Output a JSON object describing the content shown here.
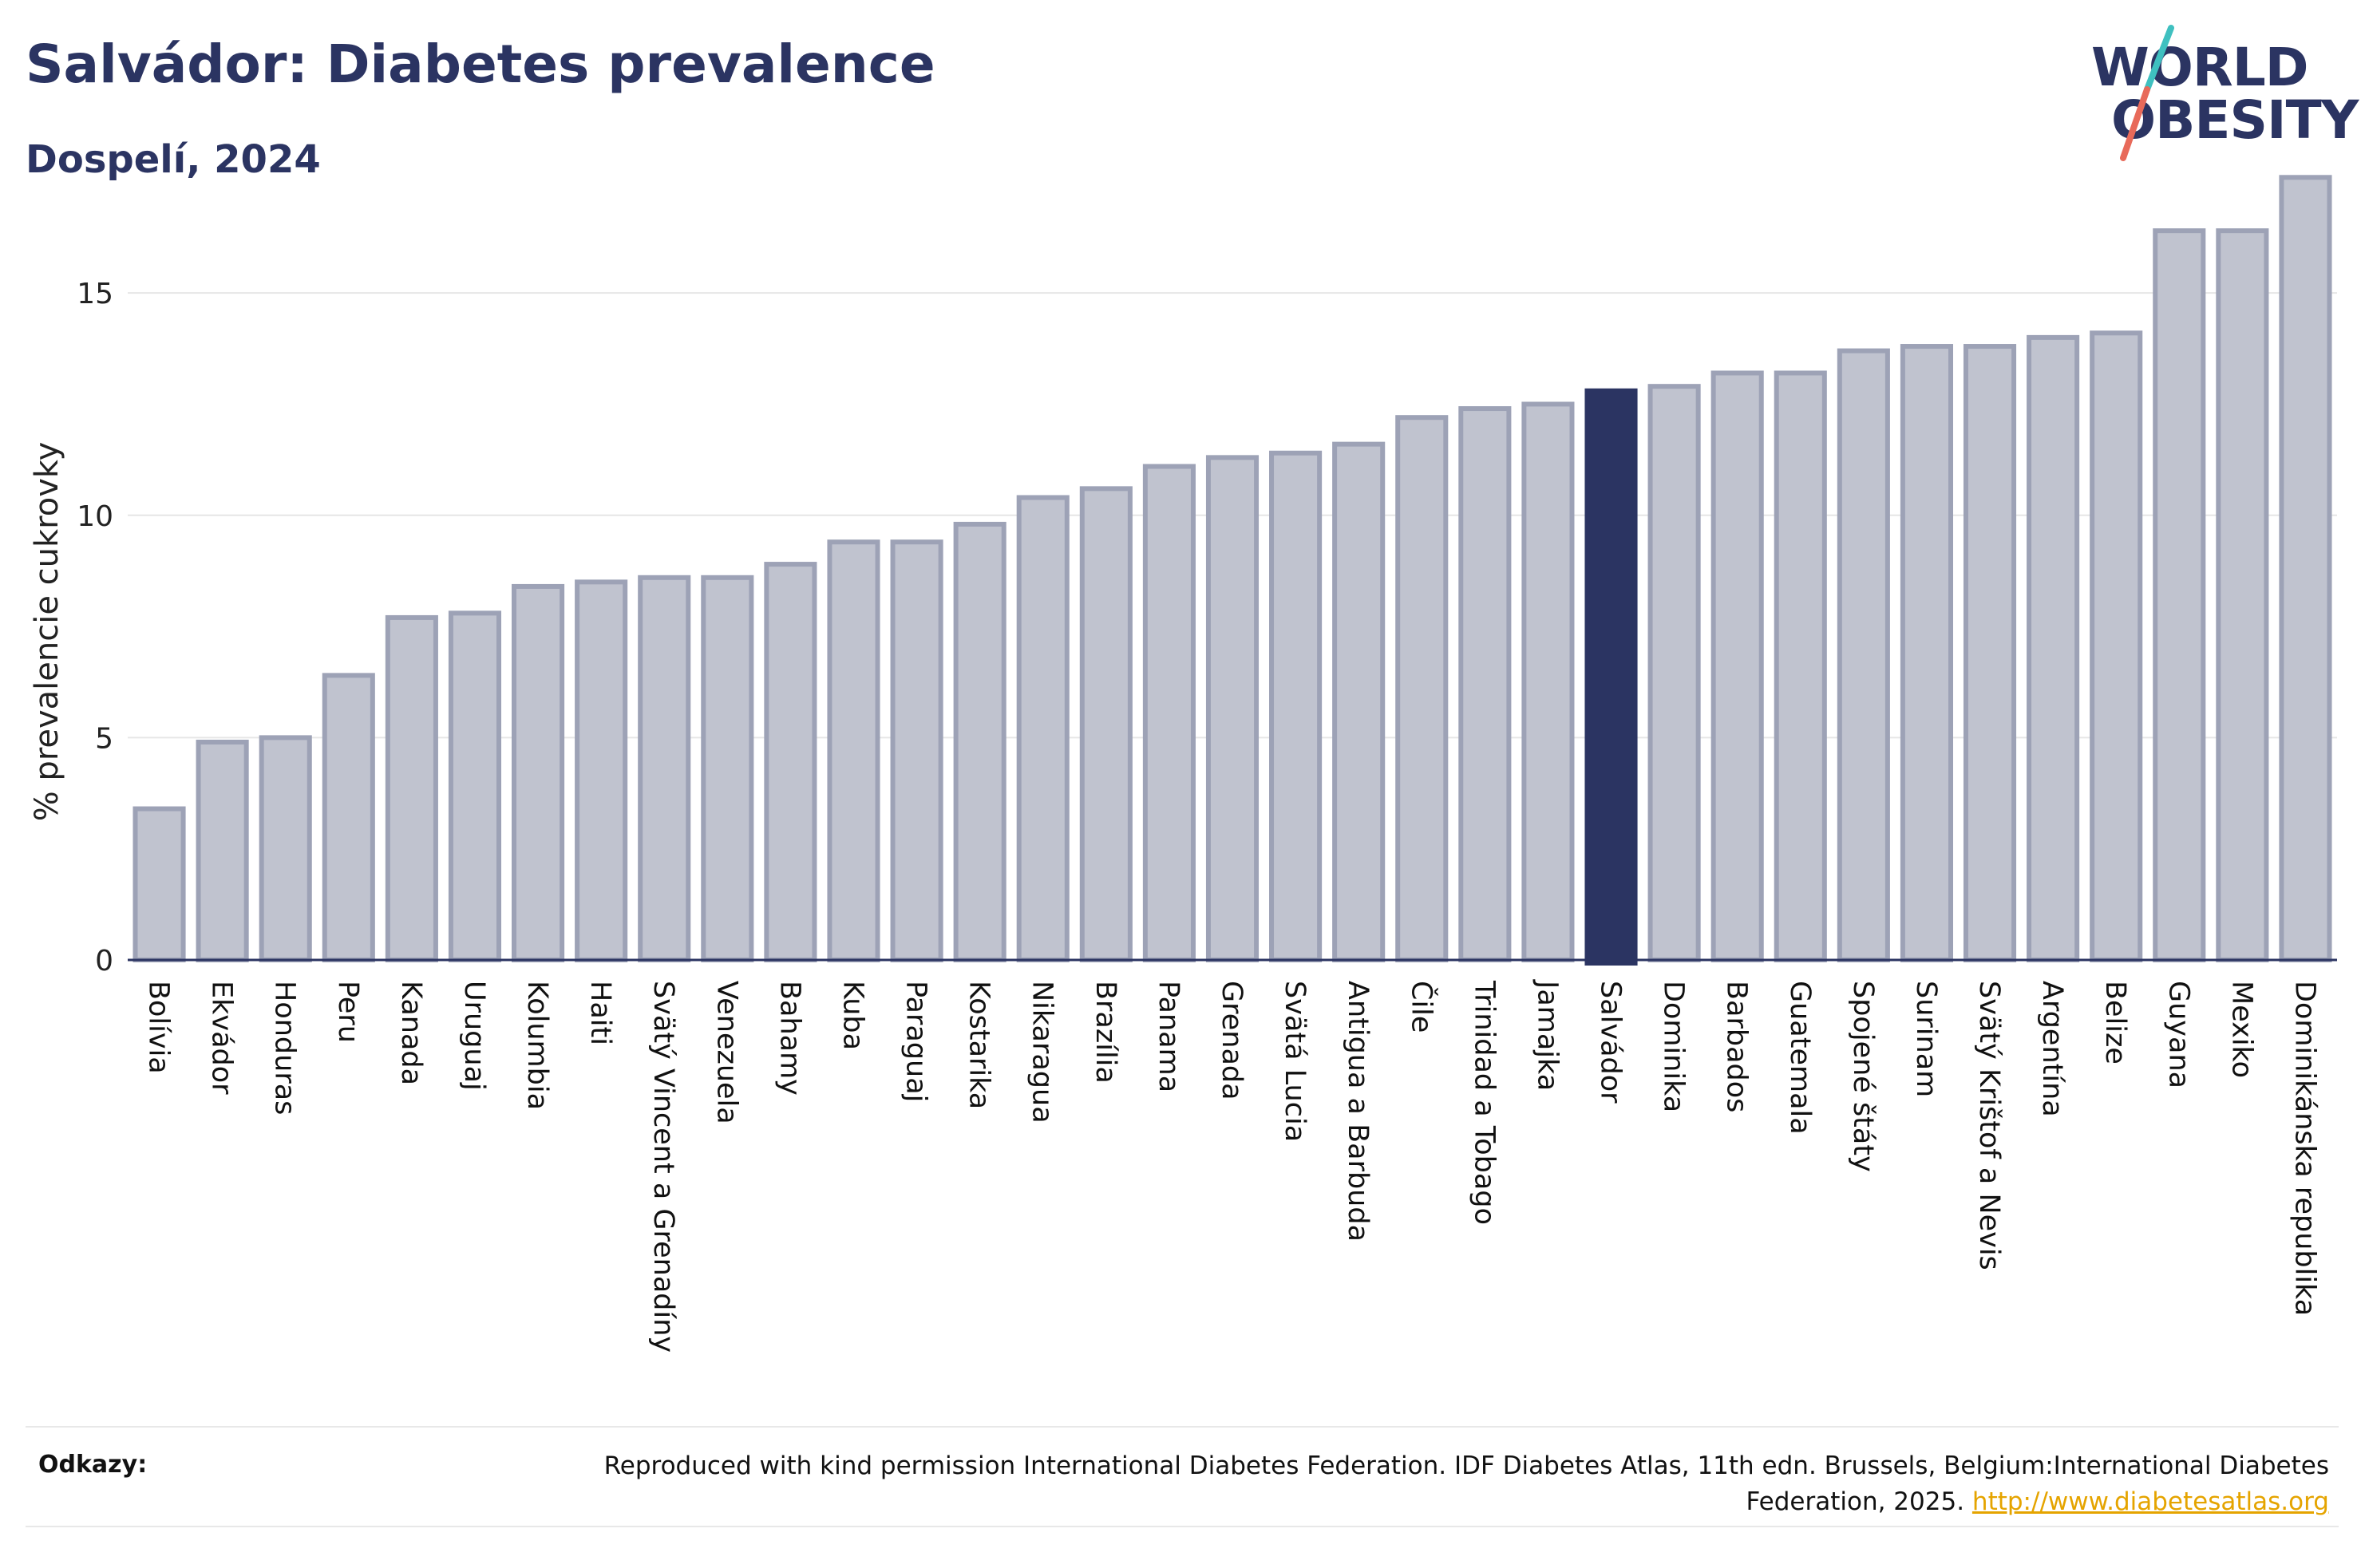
{
  "header": {
    "title": "Salvádor: Diabetes prevalence",
    "subtitle": "Dospelí, 2024"
  },
  "logo": {
    "line1": "WORLD",
    "line2": "OBESITY",
    "slash_colors": [
      "#3fc0c0",
      "#e86a5a"
    ]
  },
  "chart_data": {
    "type": "bar",
    "ylabel": "% prevalencie cukrovky",
    "ylim": [
      0,
      18
    ],
    "yticks": [
      0,
      5,
      10,
      15
    ],
    "grid": true,
    "highlight": "Salvádor",
    "colors": {
      "bar": "#c0c3cf",
      "bar_edge": "#9da2b6",
      "highlight": "#2b3462",
      "grid": "#e6e6e6",
      "axis": "#2b3462"
    },
    "categories": [
      "Bolívia",
      "Ekvádor",
      "Honduras",
      "Peru",
      "Kanada",
      "Uruguaj",
      "Kolumbia",
      "Haiti",
      "Svätý Vincent a Grenadíny",
      "Venezuela",
      "Bahamy",
      "Kuba",
      "Paraguaj",
      "Kostarika",
      "Nikaragua",
      "Brazília",
      "Panama",
      "Grenada",
      "Svätá Lucia",
      "Antigua a Barbuda",
      "Čile",
      "Trinidad a Tobago",
      "Jamajka",
      "Salvádor",
      "Dominika",
      "Barbados",
      "Guatemala",
      "Spojené štáty",
      "Surinam",
      "Svätý Krištof a Nevis",
      "Argentína",
      "Belize",
      "Guyana",
      "Mexiko",
      "Dominikánska republika"
    ],
    "values": [
      3.4,
      4.9,
      5.0,
      6.4,
      7.7,
      7.8,
      8.4,
      8.5,
      8.6,
      8.6,
      8.9,
      9.4,
      9.4,
      9.8,
      10.4,
      10.6,
      11.1,
      11.3,
      11.4,
      11.6,
      12.2,
      12.4,
      12.5,
      12.8,
      12.9,
      13.2,
      13.2,
      13.7,
      13.8,
      13.8,
      14.0,
      14.1,
      16.4,
      16.4,
      17.6
    ]
  },
  "references": {
    "label": "Odkazy:",
    "text": "Reproduced with kind permission International Diabetes Federation. IDF Diabetes Atlas, 11th edn. Brussels, Belgium:International Diabetes Federation, 2025.",
    "link": "http://www.diabetesatlas.org"
  }
}
